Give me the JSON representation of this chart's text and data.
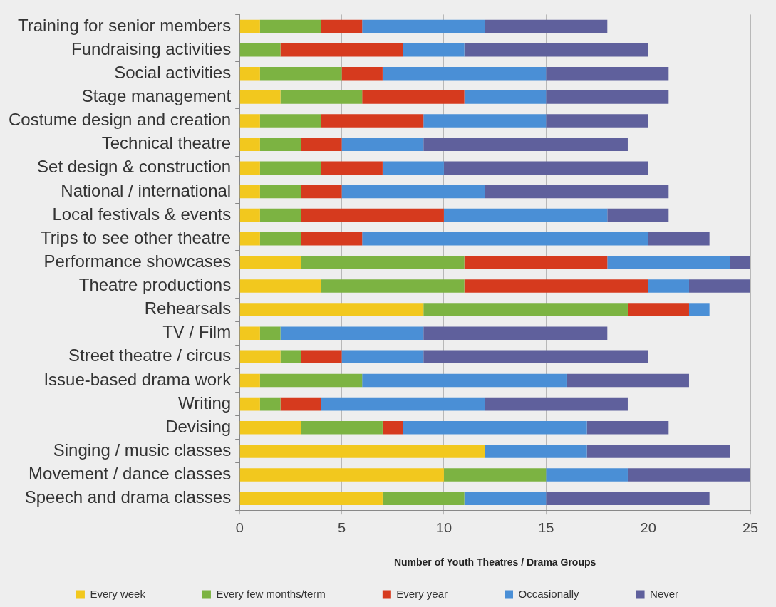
{
  "chart_data": {
    "type": "bar",
    "orientation": "horizontal",
    "stacked": true,
    "categories": [
      "Training for senior members",
      "Fundraising activities",
      "Social activities",
      "Stage management",
      "Costume design and creation",
      "Technical theatre",
      "Set design & construction",
      "National / international",
      "Local festivals & events",
      "Trips to see other theatre",
      "Performance showcases",
      "Theatre productions",
      "Rehearsals",
      "TV / Film",
      "Street theatre / circus",
      "Issue-based drama work",
      "Writing",
      "Devising",
      "Singing / music classes",
      "Movement / dance classes",
      "Speech and drama classes"
    ],
    "series": [
      {
        "name": "Every week",
        "color": "#f2c81e",
        "values": [
          1,
          0,
          1,
          2,
          1,
          1,
          1,
          1,
          1,
          1,
          3,
          4,
          9,
          1,
          2,
          1,
          1,
          3,
          12,
          10,
          7
        ]
      },
      {
        "name": "Every few months/term",
        "color": "#7cb342",
        "values": [
          3,
          2,
          4,
          4,
          3,
          2,
          3,
          2,
          2,
          2,
          8,
          7,
          10,
          1,
          1,
          5,
          1,
          4,
          0,
          5,
          4
        ]
      },
      {
        "name": "Every year",
        "color": "#d63a1e",
        "values": [
          2,
          6,
          2,
          5,
          5,
          2,
          3,
          2,
          7,
          3,
          7,
          9,
          3,
          0,
          2,
          0,
          2,
          1,
          0,
          0,
          0
        ]
      },
      {
        "name": "Occasionally",
        "color": "#4a8fd6",
        "values": [
          6,
          3,
          8,
          4,
          6,
          4,
          3,
          7,
          8,
          14,
          6,
          2,
          1,
          7,
          4,
          10,
          8,
          9,
          5,
          4,
          4
        ]
      },
      {
        "name": "Never",
        "color": "#5f609c",
        "values": [
          6,
          9,
          6,
          6,
          5,
          10,
          10,
          9,
          3,
          3,
          1,
          3,
          0,
          9,
          11,
          6,
          7,
          4,
          7,
          6,
          8
        ]
      }
    ],
    "xlabel": "Number of Youth Theatres / Drama Groups",
    "xlim": [
      0,
      25
    ],
    "xticks": [
      0,
      5,
      10,
      15,
      20,
      25
    ],
    "grid": "x",
    "legend": "bottom"
  }
}
